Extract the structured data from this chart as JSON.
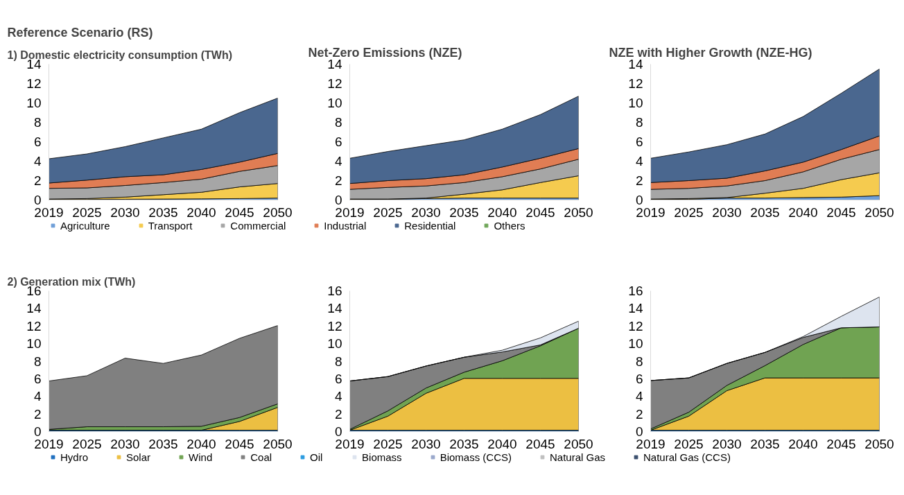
{
  "chart_data": [
    {
      "type": "area",
      "stacked": true,
      "title": "Reference Scenario (RS)",
      "subtitle": "1) Domestic electricity consumption (TWh)",
      "legend": "bottom",
      "categories": [
        "2019",
        "2025",
        "2030",
        "2035",
        "2040",
        "2045",
        "2050"
      ],
      "ylim": [
        0,
        14
      ],
      "yticks": [
        0,
        2,
        4,
        6,
        8,
        10,
        12,
        14
      ],
      "series": [
        {
          "name": "Agriculture",
          "color": "#6f9fd8",
          "values": [
            0.05,
            0.06,
            0.08,
            0.1,
            0.12,
            0.15,
            0.2
          ]
        },
        {
          "name": "Transport",
          "color": "#f5cb4f",
          "values": [
            0.05,
            0.09,
            0.22,
            0.45,
            0.68,
            1.2,
            1.5
          ]
        },
        {
          "name": "Commercial",
          "color": "#a6a6a6",
          "values": [
            1.1,
            1.1,
            1.2,
            1.25,
            1.35,
            1.6,
            1.85
          ]
        },
        {
          "name": "Industrial",
          "color": "#e07d54",
          "values": [
            0.55,
            0.8,
            0.9,
            0.8,
            1.0,
            0.95,
            1.25
          ]
        },
        {
          "name": "Residential",
          "color": "#4a678f",
          "values": [
            2.5,
            2.7,
            3.1,
            3.8,
            4.15,
            5.1,
            5.7
          ]
        },
        {
          "name": "Others",
          "color": "#70a65a",
          "values": [
            null,
            null,
            null,
            null,
            null,
            null,
            null
          ]
        }
      ]
    },
    {
      "type": "area",
      "stacked": true,
      "title": "Net-Zero Emissions (NZE)",
      "categories": [
        "2019",
        "2025",
        "2030",
        "2035",
        "2040",
        "2045",
        "2050"
      ],
      "ylim": [
        0,
        14
      ],
      "yticks": [
        0,
        2,
        4,
        6,
        8,
        10,
        12,
        14
      ],
      "series": [
        {
          "color": "#6f9fd8",
          "values": [
            0.05,
            0.08,
            0.15,
            0.2,
            0.2,
            0.2,
            0.2
          ]
        },
        {
          "color": "#f5cb4f",
          "values": [
            0.05,
            0.02,
            0.05,
            0.4,
            0.85,
            1.6,
            2.3
          ]
        },
        {
          "color": "#a6a6a6",
          "values": [
            1.0,
            1.2,
            1.25,
            1.2,
            1.35,
            1.4,
            1.7
          ]
        },
        {
          "color": "#e07d54",
          "values": [
            0.6,
            0.7,
            0.75,
            0.8,
            1.0,
            1.1,
            1.1
          ]
        },
        {
          "color": "#4a678f",
          "values": [
            2.6,
            3.0,
            3.4,
            3.6,
            3.9,
            4.5,
            5.4
          ]
        }
      ]
    },
    {
      "type": "area",
      "stacked": true,
      "title": "NZE with Higher Growth (NZE-HG)",
      "categories": [
        "2019",
        "2025",
        "2030",
        "2035",
        "2040",
        "2045",
        "2050"
      ],
      "ylim": [
        0,
        14
      ],
      "yticks": [
        0,
        2,
        4,
        6,
        8,
        10,
        12,
        14
      ],
      "series": [
        {
          "color": "#6f9fd8",
          "values": [
            0.05,
            0.08,
            0.2,
            0.2,
            0.25,
            0.3,
            0.45
          ]
        },
        {
          "color": "#f5cb4f",
          "values": [
            0.05,
            0.07,
            0.05,
            0.5,
            0.95,
            1.8,
            2.35
          ]
        },
        {
          "color": "#a6a6a6",
          "values": [
            1.0,
            1.05,
            1.2,
            1.3,
            1.7,
            2.1,
            2.4
          ]
        },
        {
          "color": "#e07d54",
          "values": [
            0.7,
            0.8,
            0.8,
            1.0,
            1.0,
            1.0,
            1.4
          ]
        },
        {
          "color": "#4a678f",
          "values": [
            2.5,
            2.95,
            3.45,
            3.8,
            4.7,
            5.8,
            6.9
          ]
        }
      ]
    },
    {
      "type": "area",
      "stacked": true,
      "subtitle": "2) Generation mix (TWh)",
      "legend": "bottom",
      "categories": [
        "2019",
        "2025",
        "2030",
        "2035",
        "2040",
        "2045",
        "2050"
      ],
      "ylim": [
        0,
        16
      ],
      "yticks": [
        0,
        2,
        4,
        6,
        8,
        10,
        12,
        14,
        16
      ],
      "series": [
        {
          "name": "Hydro",
          "color": "#1f6fbf",
          "values": [
            0.15,
            0.15,
            0.15,
            0.15,
            0.15,
            0.15,
            0.15
          ]
        },
        {
          "name": "Solar",
          "color": "#ecbf42",
          "values": [
            0,
            0,
            0,
            0,
            0,
            1.0,
            2.6
          ]
        },
        {
          "name": "Wind",
          "color": "#70a352",
          "values": [
            0.1,
            0.4,
            0.4,
            0.4,
            0.45,
            0.45,
            0.4
          ]
        },
        {
          "name": "Coal",
          "color": "#808080",
          "values": [
            5.5,
            5.8,
            7.8,
            7.2,
            8.1,
            9.0,
            8.9
          ]
        },
        {
          "name": "Oil",
          "color": "#2b9be0",
          "values": [
            null,
            null,
            null,
            null,
            null,
            null,
            null
          ]
        },
        {
          "name": "Biomass",
          "color": "#dde4ef",
          "values": [
            null,
            null,
            null,
            null,
            null,
            null,
            null
          ]
        },
        {
          "name": "Biomass (CCS)",
          "color": "#9aa8cc",
          "values": [
            null,
            null,
            null,
            null,
            null,
            null,
            null
          ]
        },
        {
          "name": "Natural Gas",
          "color": "#bfbfbf",
          "values": [
            null,
            null,
            null,
            null,
            null,
            null,
            null
          ]
        },
        {
          "name": "Natural Gas (CCS)",
          "color": "#3b4f6e",
          "values": [
            null,
            null,
            null,
            null,
            null,
            null,
            null
          ]
        }
      ]
    },
    {
      "type": "area",
      "stacked": true,
      "categories": [
        "2019",
        "2025",
        "2030",
        "2035",
        "2040",
        "2045",
        "2050"
      ],
      "ylim": [
        0,
        16
      ],
      "yticks": [
        0,
        2,
        4,
        6,
        8,
        10,
        12,
        14,
        16
      ],
      "series": [
        {
          "color": "#1f6fbf",
          "values": [
            0.15,
            0.15,
            0.15,
            0.15,
            0.15,
            0.15,
            0.15
          ]
        },
        {
          "color": "#ecbf42",
          "values": [
            0,
            1.6,
            4.2,
            5.9,
            5.9,
            5.9,
            5.9
          ]
        },
        {
          "color": "#70a352",
          "values": [
            0.1,
            0.6,
            0.6,
            0.7,
            2.0,
            3.7,
            5.7
          ]
        },
        {
          "color": "#808080",
          "values": [
            5.5,
            3.9,
            2.5,
            1.7,
            1.0,
            0.1,
            0
          ]
        },
        {
          "color": "#dde4ef",
          "values": [
            0,
            0,
            0,
            0,
            0.2,
            0.8,
            0.8
          ]
        }
      ]
    },
    {
      "type": "area",
      "stacked": true,
      "categories": [
        "2019",
        "2025",
        "2030",
        "2035",
        "2040",
        "2045",
        "2050"
      ],
      "ylim": [
        0,
        16
      ],
      "yticks": [
        0,
        2,
        4,
        6,
        8,
        10,
        12,
        14,
        16
      ],
      "series": [
        {
          "color": "#1f6fbf",
          "values": [
            0.15,
            0.15,
            0.15,
            0.15,
            0.15,
            0.15,
            0.15
          ]
        },
        {
          "color": "#ecbf42",
          "values": [
            0,
            1.6,
            4.5,
            5.95,
            5.95,
            5.95,
            5.95
          ]
        },
        {
          "color": "#70a352",
          "values": [
            0.15,
            0.45,
            0.6,
            1.4,
            3.8,
            5.7,
            5.8
          ]
        },
        {
          "color": "#808080",
          "values": [
            5.5,
            3.9,
            2.5,
            1.5,
            0.8,
            0,
            0
          ]
        },
        {
          "color": "#dde4ef",
          "values": [
            0,
            0,
            0,
            0,
            0.1,
            1.3,
            3.4
          ]
        }
      ]
    }
  ]
}
